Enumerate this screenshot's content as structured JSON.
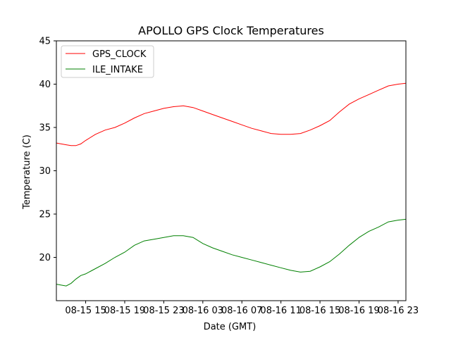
{
  "chart_data": {
    "type": "line",
    "title": "APOLLO GPS Clock Temperatures",
    "xlabel": "Date (GMT)",
    "ylabel": "Temperature (C)",
    "x_unit": "hours since 08-15 12:00 GMT",
    "xlim": [
      0,
      35.8
    ],
    "ylim": [
      15,
      45
    ],
    "yticks": [
      20,
      25,
      30,
      35,
      40,
      45
    ],
    "xticks": [
      {
        "value": 3,
        "label": "08-15 15"
      },
      {
        "value": 7,
        "label": "08-15 19"
      },
      {
        "value": 11,
        "label": "08-15 23"
      },
      {
        "value": 15,
        "label": "08-16 03"
      },
      {
        "value": 19,
        "label": "08-16 07"
      },
      {
        "value": 23,
        "label": "08-16 11"
      },
      {
        "value": 27,
        "label": "08-16 15"
      },
      {
        "value": 31,
        "label": "08-16 19"
      },
      {
        "value": 35,
        "label": "08-16 23"
      }
    ],
    "legend": {
      "position": "top-left"
    },
    "grid": false,
    "series": [
      {
        "name": "GPS_CLOCK",
        "color": "#ff0000",
        "x": [
          0,
          1,
          1.5,
          2,
          2.5,
          3,
          4,
          5,
          6,
          7,
          8,
          9,
          10,
          11,
          12,
          13,
          14,
          15,
          16,
          17,
          18,
          19,
          20,
          21,
          22,
          23,
          24,
          25,
          26,
          27,
          28,
          29,
          30,
          31,
          32,
          33,
          34,
          35,
          35.8
        ],
        "y": [
          33.2,
          33.0,
          32.9,
          32.9,
          33.1,
          33.5,
          34.2,
          34.7,
          35.0,
          35.5,
          36.1,
          36.6,
          36.9,
          37.2,
          37.4,
          37.5,
          37.3,
          36.9,
          36.5,
          36.1,
          35.7,
          35.3,
          34.9,
          34.6,
          34.3,
          34.2,
          34.2,
          34.3,
          34.7,
          35.2,
          35.8,
          36.8,
          37.7,
          38.3,
          38.8,
          39.3,
          39.8,
          40.0,
          40.1
        ]
      },
      {
        "name": "ILE_INTAKE",
        "color": "#008000",
        "x": [
          0,
          0.5,
          1,
          1.5,
          2,
          2.5,
          3,
          4,
          5,
          6,
          7,
          8,
          9,
          10,
          11,
          12,
          13,
          14,
          15,
          16,
          17,
          18,
          19,
          20,
          21,
          22,
          23,
          24,
          25,
          26,
          27,
          28,
          29,
          30,
          31,
          32,
          33,
          34,
          35,
          35.8
        ],
        "y": [
          16.9,
          16.8,
          16.7,
          17.0,
          17.5,
          17.9,
          18.1,
          18.7,
          19.3,
          20.0,
          20.6,
          21.4,
          21.9,
          22.1,
          22.3,
          22.5,
          22.5,
          22.3,
          21.6,
          21.1,
          20.7,
          20.3,
          20.0,
          19.7,
          19.4,
          19.1,
          18.8,
          18.5,
          18.3,
          18.4,
          18.9,
          19.5,
          20.4,
          21.4,
          22.3,
          23.0,
          23.5,
          24.1,
          24.3,
          24.4
        ]
      }
    ]
  }
}
